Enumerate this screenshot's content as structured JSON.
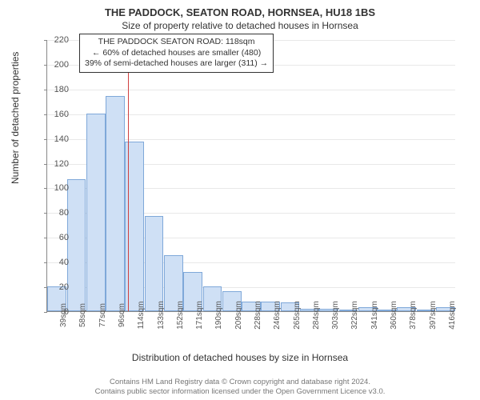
{
  "title": "THE PADDOCK, SEATON ROAD, HORNSEA, HU18 1BS",
  "subtitle": "Size of property relative to detached houses in Hornsea",
  "y_label": "Number of detached properties",
  "x_label": "Distribution of detached houses by size in Hornsea",
  "chart": {
    "type": "histogram",
    "ylim": [
      0,
      220
    ],
    "ytick_step": 20,
    "background_color": "#ffffff",
    "grid_color": "#e8e8e8",
    "bar_fill": "#cfe0f5",
    "bar_border": "#7fa8d9",
    "reference_line_color": "#d04040",
    "reference_value": 118,
    "x_start": 39,
    "x_step": 19,
    "x_unit": "sqm",
    "categories": [
      "39sqm",
      "58sqm",
      "77sqm",
      "96sqm",
      "114sqm",
      "133sqm",
      "152sqm",
      "171sqm",
      "190sqm",
      "209sqm",
      "228sqm",
      "246sqm",
      "265sqm",
      "284sqm",
      "303sqm",
      "322sqm",
      "341sqm",
      "360sqm",
      "378sqm",
      "397sqm",
      "416sqm"
    ],
    "values": [
      20,
      107,
      160,
      174,
      137,
      77,
      45,
      32,
      20,
      16,
      8,
      8,
      7,
      2,
      2,
      0,
      3,
      0,
      3,
      0,
      3
    ]
  },
  "annotation": {
    "line1": "THE PADDOCK SEATON ROAD: 118sqm",
    "line2": "← 60% of detached houses are smaller (480)",
    "line3": "39% of semi-detached houses are larger (311) →"
  },
  "footer": {
    "line1": "Contains HM Land Registry data © Crown copyright and database right 2024.",
    "line2": "Contains public sector information licensed under the Open Government Licence v3.0."
  }
}
